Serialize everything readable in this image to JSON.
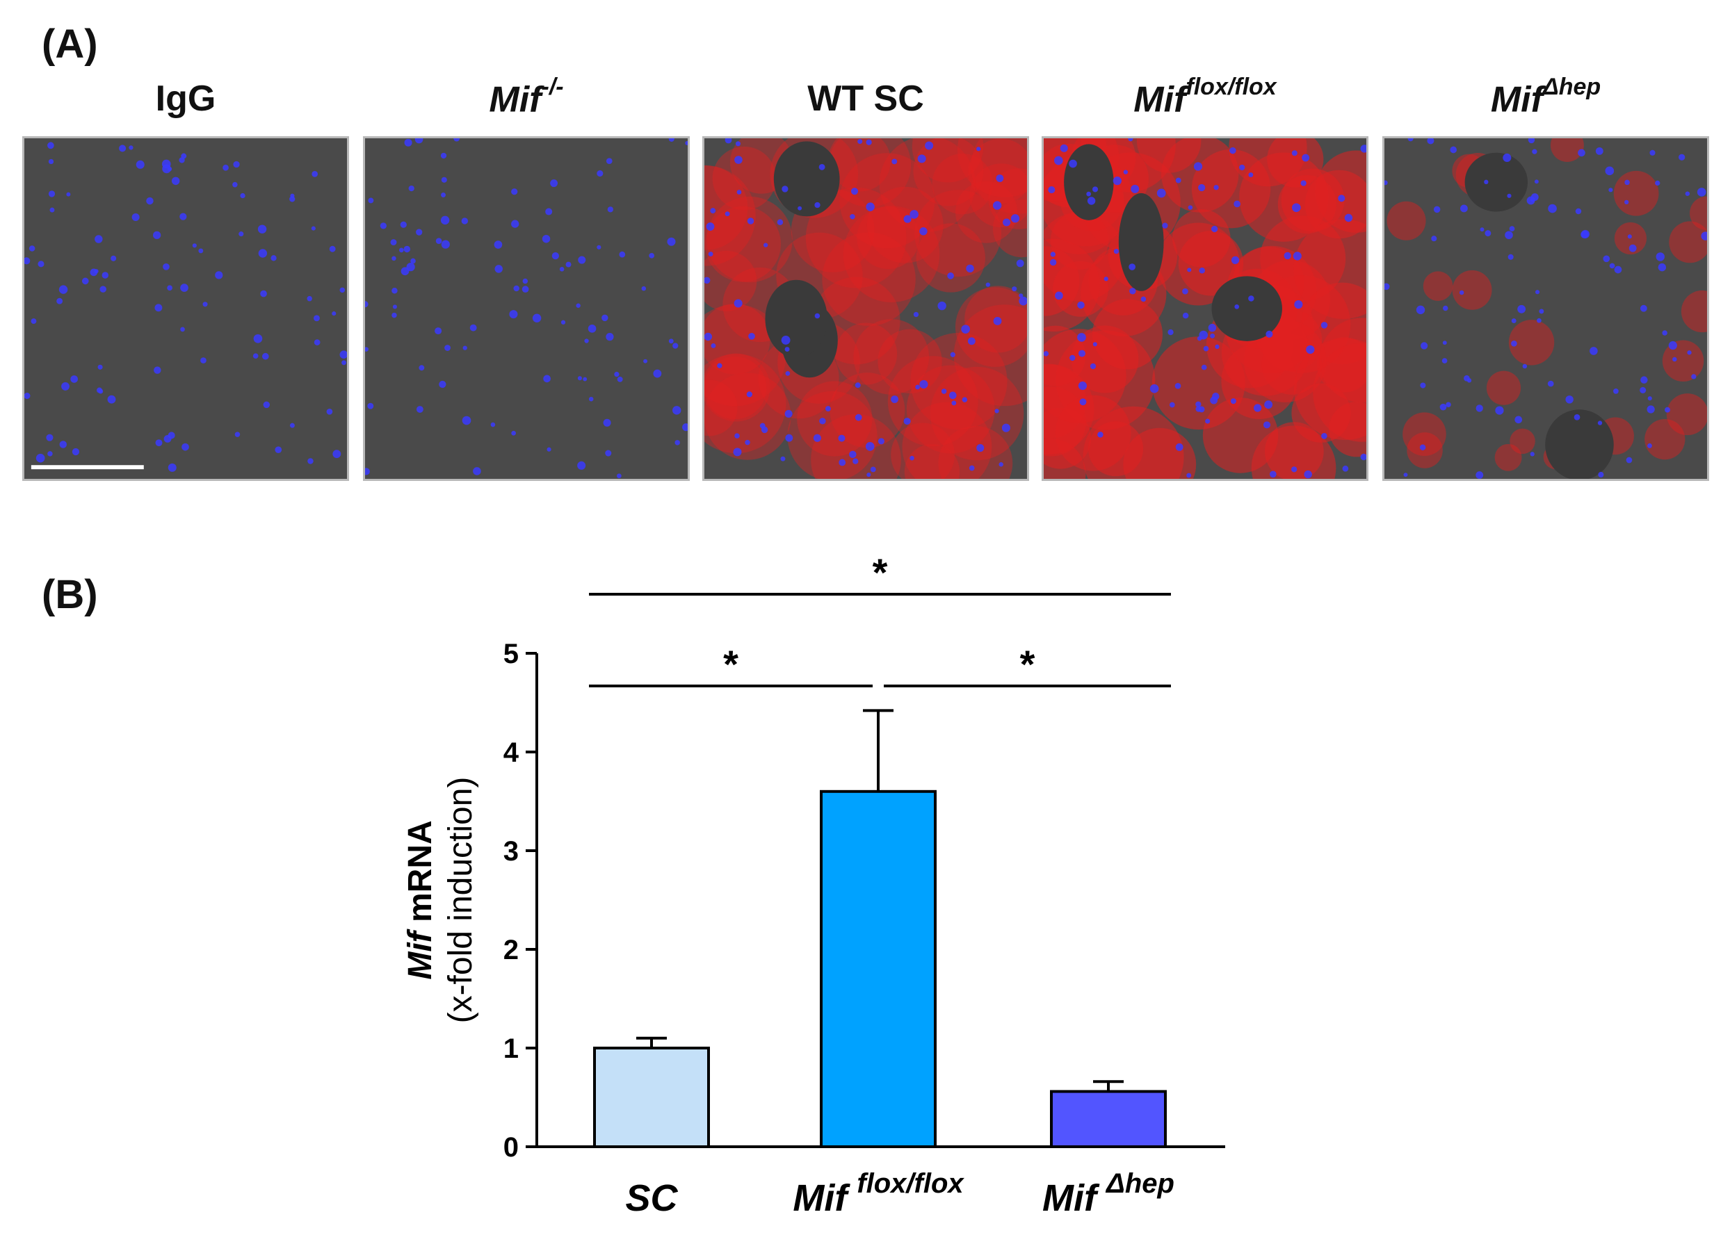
{
  "panel_a": {
    "letter": "(A)",
    "images": [
      {
        "main": "IgG",
        "sup": "",
        "main_italic": false,
        "stain": "blue-only"
      },
      {
        "main": "Mif",
        "sup": "-/-",
        "main_italic": true,
        "stain": "blue-only"
      },
      {
        "main": "WT SC",
        "sup": "",
        "main_italic": false,
        "stain": "red-diffuse"
      },
      {
        "main": "Mif",
        "sup": "flox/flox",
        "main_italic": true,
        "stain": "red-intense"
      },
      {
        "main": "Mif",
        "sup": "Δhep",
        "main_italic": true,
        "stain": "red-patchy"
      }
    ],
    "colors": {
      "nuclei": "#3a3aff",
      "mif": "#e02020",
      "background": "#4a4a4a"
    }
  },
  "panel_b": {
    "letter": "(B)"
  },
  "chart_data": {
    "type": "bar",
    "categories": [
      {
        "main": "SC",
        "sup": ""
      },
      {
        "main": "Mif",
        "sup": "flox/flox"
      },
      {
        "main": "Mif",
        "sup": "Δhep"
      }
    ],
    "values": [
      1.0,
      3.6,
      0.56
    ],
    "errors": [
      0.1,
      0.82,
      0.1
    ],
    "colors": [
      "#c4e0f8",
      "#00a2ff",
      "#5255ff"
    ],
    "ylabel_italic": "Mif",
    "ylabel_rest": " mRNA",
    "ylabel_line2": "(x-fold induction)",
    "ylim": [
      0,
      5
    ],
    "yticks": [
      0,
      1,
      2,
      3,
      4,
      5
    ],
    "significance": [
      {
        "from": 0,
        "to": 1,
        "label": "*"
      },
      {
        "from": 1,
        "to": 2,
        "label": "*"
      },
      {
        "from": 0,
        "to": 2,
        "label": "*"
      }
    ]
  }
}
